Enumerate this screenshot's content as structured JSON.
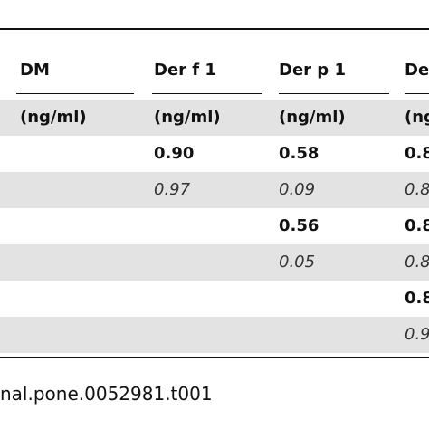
{
  "table": {
    "header": [
      "DM",
      "Der f 1",
      "Der p 1",
      "De"
    ],
    "units": [
      "(ng/ml)",
      "(ng/ml)",
      "(ng/ml)",
      "(ng"
    ],
    "rows": [
      [
        null,
        "0.90",
        "0.58",
        "0.8"
      ],
      [
        null,
        "0.97",
        "0.09",
        "0.8"
      ],
      [
        null,
        null,
        "0.56",
        "0.8"
      ],
      [
        null,
        null,
        "0.05",
        "0.8"
      ],
      [
        null,
        null,
        null,
        "0.8"
      ],
      [
        null,
        null,
        null,
        "0.9"
      ]
    ]
  },
  "footer": "nal.pone.0052981.t001"
}
